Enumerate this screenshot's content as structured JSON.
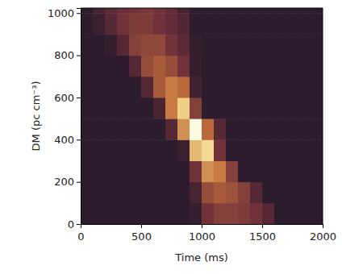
{
  "chart_data": {
    "type": "heatmap",
    "xlabel": "Time (ms)",
    "ylabel": "DM (pc cm⁻³)",
    "xlim": [
      0,
      2000
    ],
    "ylim": [
      0,
      1024
    ],
    "xticks": [
      0,
      500,
      1000,
      1500,
      2000
    ],
    "yticks": [
      0,
      200,
      400,
      600,
      800,
      1000
    ],
    "x_edges": [
      0,
      100,
      200,
      300,
      400,
      500,
      600,
      700,
      800,
      900,
      1000,
      1100,
      1200,
      1300,
      1400,
      1500,
      1600,
      1700,
      1800,
      1900,
      2000
    ],
    "y_edges": [
      0,
      100,
      200,
      300,
      400,
      500,
      600,
      700,
      800,
      900,
      1000,
      1024
    ],
    "cells": [
      [
        0.05,
        0.05,
        0.05,
        0.05,
        0.05,
        0.05,
        0.05,
        0.05,
        0.05,
        0.08,
        0.3,
        0.35,
        0.35,
        0.33,
        0.3,
        0.2,
        0.05,
        0.05,
        0.05,
        0.05
      ],
      [
        0.05,
        0.05,
        0.05,
        0.05,
        0.05,
        0.05,
        0.05,
        0.05,
        0.05,
        0.15,
        0.4,
        0.45,
        0.42,
        0.35,
        0.2,
        0.05,
        0.05,
        0.05,
        0.05,
        0.05
      ],
      [
        0.05,
        0.05,
        0.05,
        0.05,
        0.05,
        0.05,
        0.05,
        0.05,
        0.05,
        0.3,
        0.6,
        0.55,
        0.35,
        0.05,
        0.05,
        0.05,
        0.05,
        0.05,
        0.05,
        0.05
      ],
      [
        0.05,
        0.05,
        0.05,
        0.05,
        0.05,
        0.05,
        0.05,
        0.05,
        0.1,
        0.7,
        0.8,
        0.3,
        0.05,
        0.05,
        0.05,
        0.05,
        0.05,
        0.05,
        0.05,
        0.05
      ],
      [
        0.05,
        0.05,
        0.05,
        0.05,
        0.05,
        0.05,
        0.05,
        0.2,
        0.6,
        1.0,
        0.5,
        0.2,
        0.05,
        0.05,
        0.05,
        0.05,
        0.05,
        0.05,
        0.05,
        0.05
      ],
      [
        0.05,
        0.05,
        0.05,
        0.05,
        0.05,
        0.05,
        0.15,
        0.55,
        0.75,
        0.35,
        0.05,
        0.05,
        0.05,
        0.05,
        0.05,
        0.05,
        0.05,
        0.05,
        0.05,
        0.05
      ],
      [
        0.05,
        0.05,
        0.05,
        0.05,
        0.05,
        0.2,
        0.45,
        0.55,
        0.5,
        0.12,
        0.05,
        0.05,
        0.05,
        0.05,
        0.05,
        0.05,
        0.05,
        0.05,
        0.05,
        0.05
      ],
      [
        0.05,
        0.05,
        0.05,
        0.05,
        0.2,
        0.4,
        0.45,
        0.4,
        0.3,
        0.08,
        0.05,
        0.05,
        0.05,
        0.05,
        0.05,
        0.05,
        0.05,
        0.05,
        0.05,
        0.05
      ],
      [
        0.05,
        0.05,
        0.08,
        0.2,
        0.35,
        0.38,
        0.38,
        0.3,
        0.22,
        0.07,
        0.05,
        0.05,
        0.05,
        0.05,
        0.05,
        0.05,
        0.05,
        0.05,
        0.05,
        0.05
      ],
      [
        0.05,
        0.1,
        0.2,
        0.3,
        0.33,
        0.33,
        0.3,
        0.25,
        0.18,
        0.05,
        0.05,
        0.05,
        0.05,
        0.05,
        0.05,
        0.05,
        0.05,
        0.05,
        0.05,
        0.05
      ],
      [
        0.05,
        0.15,
        0.22,
        0.28,
        0.3,
        0.32,
        0.3,
        0.24,
        0.15,
        0.05,
        0.05,
        0.05,
        0.05,
        0.05,
        0.05,
        0.05,
        0.05,
        0.05,
        0.05,
        0.05
      ]
    ]
  }
}
